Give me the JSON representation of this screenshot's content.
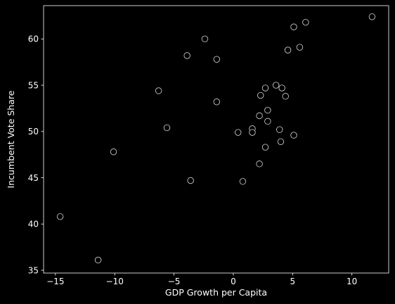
{
  "chart_data": {
    "type": "scatter",
    "title": "",
    "xlabel": "GDP Growth per Capita",
    "ylabel": "Incumbent Vote Share",
    "xlim": [
      -16.0,
      13.1
    ],
    "ylim": [
      34.7,
      63.6
    ],
    "xticks": [
      -15,
      -10,
      -5,
      0,
      5,
      10
    ],
    "yticks": [
      35,
      40,
      45,
      50,
      55,
      60
    ],
    "grid": false,
    "legend": "none",
    "colors": {
      "background": "#000000",
      "axes": "#ffffff",
      "marker_face": "#000000",
      "marker_edge": "#d9d9d9"
    },
    "points": [
      {
        "x": -14.6,
        "y": 40.8
      },
      {
        "x": -11.4,
        "y": 36.1
      },
      {
        "x": -10.1,
        "y": 47.8
      },
      {
        "x": -6.3,
        "y": 54.4
      },
      {
        "x": -5.6,
        "y": 50.4
      },
      {
        "x": -3.9,
        "y": 58.2
      },
      {
        "x": -3.6,
        "y": 44.7
      },
      {
        "x": -2.4,
        "y": 60.0
      },
      {
        "x": -1.4,
        "y": 57.8
      },
      {
        "x": -1.4,
        "y": 53.2
      },
      {
        "x": 0.4,
        "y": 49.9
      },
      {
        "x": 0.8,
        "y": 44.6
      },
      {
        "x": 1.6,
        "y": 50.3
      },
      {
        "x": 1.6,
        "y": 49.9
      },
      {
        "x": 2.2,
        "y": 51.7
      },
      {
        "x": 2.2,
        "y": 46.5
      },
      {
        "x": 2.3,
        "y": 53.9
      },
      {
        "x": 2.7,
        "y": 54.7
      },
      {
        "x": 2.7,
        "y": 48.3
      },
      {
        "x": 2.9,
        "y": 52.3
      },
      {
        "x": 2.9,
        "y": 51.1
      },
      {
        "x": 3.6,
        "y": 55.0
      },
      {
        "x": 3.9,
        "y": 50.2
      },
      {
        "x": 4.0,
        "y": 48.9
      },
      {
        "x": 4.1,
        "y": 54.7
      },
      {
        "x": 4.4,
        "y": 53.8
      },
      {
        "x": 4.6,
        "y": 58.8
      },
      {
        "x": 5.1,
        "y": 61.3
      },
      {
        "x": 5.1,
        "y": 49.6
      },
      {
        "x": 5.6,
        "y": 59.1
      },
      {
        "x": 6.1,
        "y": 61.8
      },
      {
        "x": 11.7,
        "y": 62.4
      }
    ]
  }
}
